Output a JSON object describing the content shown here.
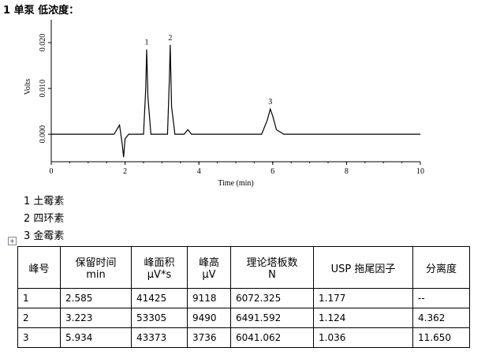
{
  "heading": "1 单泵 低浓度：",
  "chart_data": {
    "type": "line",
    "x_label": "Time (min)",
    "y_label": "Volts",
    "x": [
      0,
      1.7,
      1.85,
      1.92,
      1.96,
      2.0,
      2.1,
      2.5,
      2.56,
      2.585,
      2.62,
      2.7,
      2.85,
      3.15,
      3.2,
      3.223,
      3.26,
      3.35,
      3.6,
      3.7,
      3.8,
      5.7,
      5.85,
      5.934,
      6.0,
      6.1,
      6.3,
      10
    ],
    "values": [
      0,
      0,
      0.002,
      -0.002,
      -0.005,
      -0.001,
      0,
      0,
      0.01,
      0.0185,
      0.008,
      0,
      0,
      0,
      0.012,
      0.0195,
      0.006,
      0,
      0,
      0.001,
      0,
      0,
      0.003,
      0.0055,
      0.004,
      0.001,
      0,
      0
    ],
    "color": "#000000",
    "xlim": [
      0,
      10
    ],
    "xticks": [
      0,
      2,
      4,
      6,
      8,
      10
    ],
    "ylim": [
      -0.006,
      0.025
    ],
    "yticks": [
      {
        "value": 0,
        "label": "0.000"
      },
      {
        "value": 0.01,
        "label": "0.010"
      },
      {
        "value": 0.02,
        "label": "0.020"
      }
    ],
    "annotations": [
      {
        "text": "1",
        "x": 2.585,
        "y": 0.0185
      },
      {
        "text": "2",
        "x": 3.223,
        "y": 0.0195
      },
      {
        "text": "3",
        "x": 5.934,
        "y": 0.0055
      }
    ]
  },
  "compounds": [
    "1 土霉素",
    "2 四环素",
    "3 金霉素"
  ],
  "table": {
    "header": [
      [
        "峰号"
      ],
      [
        "保留时间",
        "min"
      ],
      [
        "峰面积",
        "μV*s"
      ],
      [
        "峰高",
        "μV"
      ],
      [
        "理论塔板数",
        "N"
      ],
      [
        "USP 拖尾因子"
      ],
      [
        "分离度"
      ]
    ],
    "rows": [
      [
        "1",
        "2.585",
        "41425",
        "9118",
        "6072.325",
        "1.177",
        "--"
      ],
      [
        "2",
        "3.223",
        "53305",
        "9490",
        "6491.592",
        "1.124",
        "4.362"
      ],
      [
        "3",
        "5.934",
        "43373",
        "3736",
        "6041.062",
        "1.036",
        "11.650"
      ]
    ]
  }
}
